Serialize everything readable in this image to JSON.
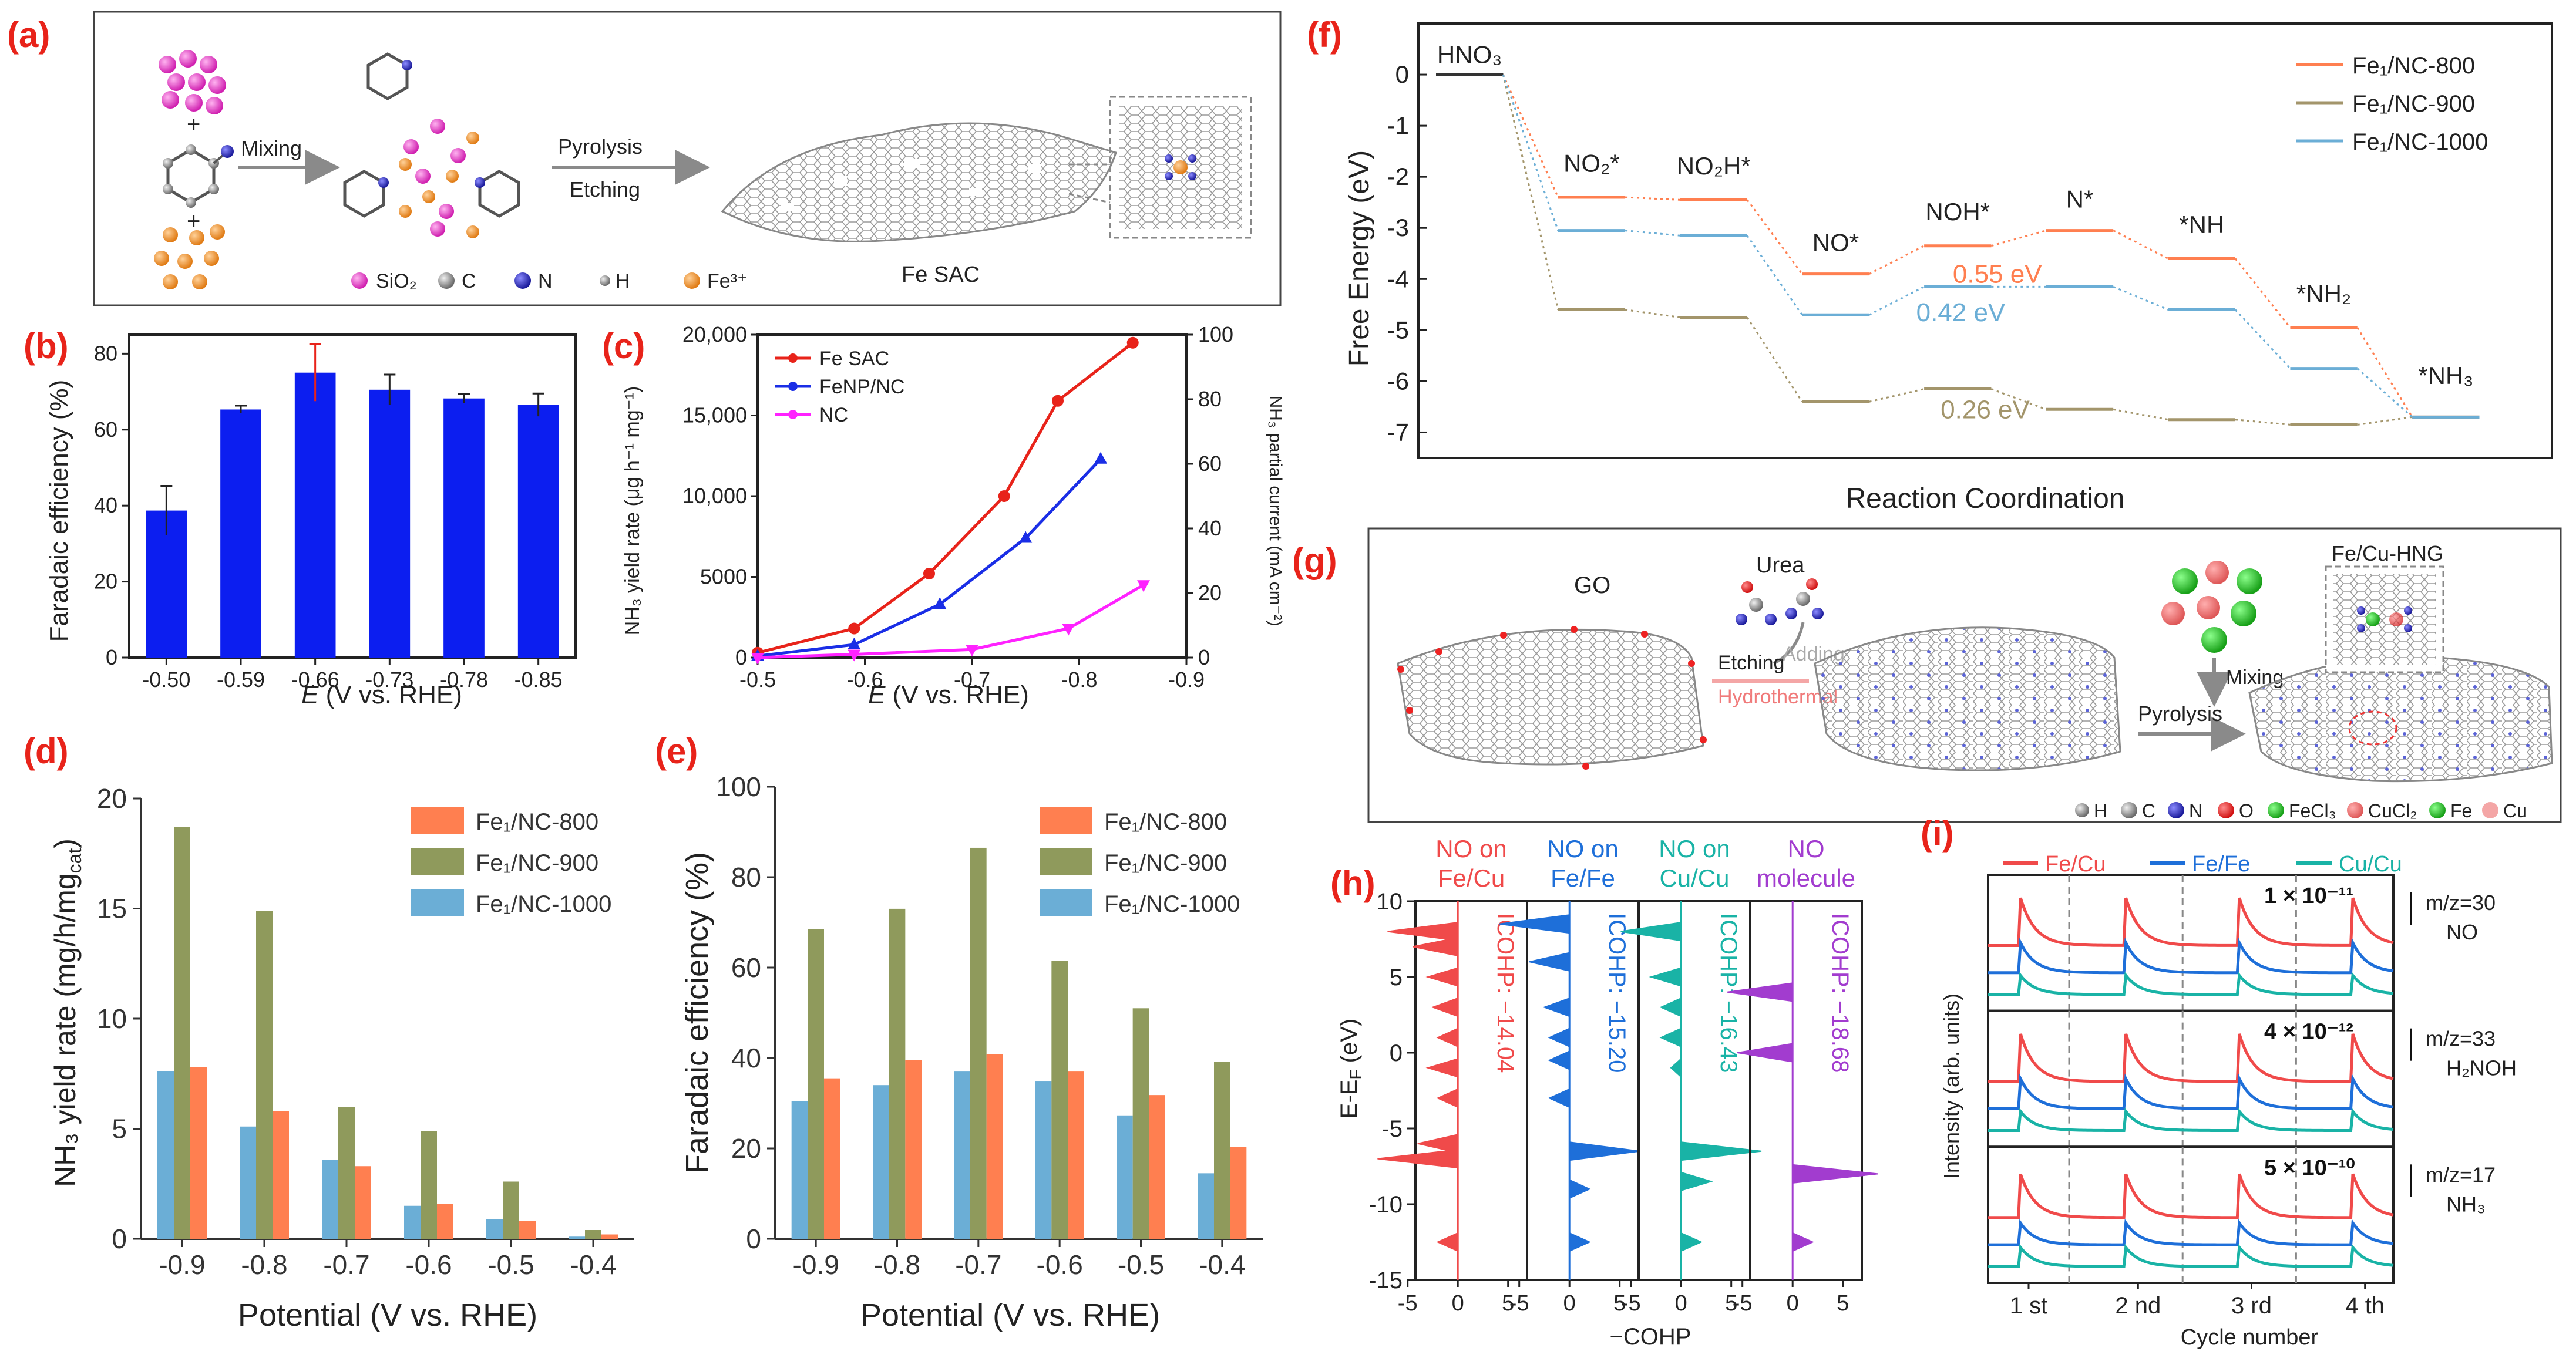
{
  "colors": {
    "label_red": "#e8231a",
    "fe_sac": "#e8231a",
    "fenp": "#1a2ee6",
    "nc": "#ff22ff",
    "bar_blue": "#0c1ef0",
    "nc800": "#ff7f50",
    "nc900": "#8f9a5c",
    "nc1000": "#6baed6",
    "fecu": "#f04a4a",
    "fefe": "#1e6fd9",
    "cucu": "#19b3a6",
    "molecule": "#a23ccf"
  },
  "panel_a": {
    "label": "(a)",
    "step1": "Mixing",
    "step2": "Pyrolysis",
    "step3": "Etching",
    "product": "Fe SAC",
    "legend": [
      "SiO₂",
      "C",
      "N",
      "H",
      "Fe³⁺"
    ],
    "plus": "+"
  },
  "panel_b": {
    "label": "(b)",
    "chart_data": {
      "type": "bar",
      "categories": [
        "-0.50",
        "-0.59",
        "-0.66",
        "-0.73",
        "-0.78",
        "-0.85"
      ],
      "values": [
        38.7,
        65.3,
        75.0,
        70.5,
        68.2,
        66.5
      ],
      "errors": [
        6.5,
        1.0,
        7.5,
        4.0,
        1.2,
        3.0
      ],
      "ylabel": "Faradaic efficiency (%)",
      "xlabel_italic": "E",
      "xlabel_rest": " (V vs. RHE)",
      "ylim": [
        0,
        85
      ],
      "yticks": [
        "0",
        "20",
        "40",
        "60",
        "80"
      ]
    }
  },
  "panel_c": {
    "label": "(c)",
    "chart_data": {
      "type": "line",
      "xlabel_italic": "E",
      "xlabel_rest": " (V vs. RHE)",
      "ylabel_left": "NH₃ yield rate (μg h⁻¹ mg⁻¹)",
      "ylabel_right": "NH₃ partial current (mA cm⁻²)",
      "xlim": [
        -0.5,
        -0.9
      ],
      "ylim_left": [
        0,
        20000
      ],
      "ylim_right": [
        0,
        100
      ],
      "xticks": [
        "-0.5",
        "-0.6",
        "-0.7",
        "-0.8",
        "-0.9"
      ],
      "yticks_left": [
        "0",
        "5000",
        "10,000",
        "15,000",
        "20,000"
      ],
      "yticks_right": [
        "0",
        "20",
        "40",
        "60",
        "80",
        "100"
      ],
      "series": [
        {
          "name": "Fe SAC",
          "x": [
            -0.5,
            -0.59,
            -0.66,
            -0.73,
            -0.78,
            -0.85
          ],
          "y": [
            300,
            1800,
            5200,
            10000,
            15900,
            19500
          ]
        },
        {
          "name": "FeNP/NC",
          "x": [
            -0.5,
            -0.59,
            -0.67,
            -0.75,
            -0.82
          ],
          "y": [
            100,
            800,
            3300,
            7400,
            12300
          ]
        },
        {
          "name": "NC",
          "x": [
            -0.5,
            -0.59,
            -0.7,
            -0.79,
            -0.86
          ],
          "y": [
            0,
            200,
            500,
            1800,
            4500
          ]
        }
      ]
    }
  },
  "panel_d": {
    "label": "(d)",
    "chart_data": {
      "type": "bar",
      "categories": [
        "-0.9",
        "-0.8",
        "-0.7",
        "-0.6",
        "-0.5",
        "-0.4"
      ],
      "series": [
        {
          "name": "Fe₁/NC-1000",
          "values": [
            7.6,
            5.1,
            3.6,
            1.5,
            0.9,
            0.1
          ]
        },
        {
          "name": "Fe₁/NC-900",
          "values": [
            18.7,
            14.9,
            6.0,
            4.9,
            2.6,
            0.4
          ]
        },
        {
          "name": "Fe₁/NC-800",
          "values": [
            7.8,
            5.8,
            3.3,
            1.6,
            0.8,
            0.2
          ]
        }
      ],
      "legend": [
        "Fe₁/NC-800",
        "Fe₁/NC-900",
        "Fe₁/NC-1000"
      ],
      "ylabel": "NH₃ yield rate (mg/h/mg",
      "ylabel_sub": "cat",
      "ylabel_close": ")",
      "xlabel": "Potential (V vs. RHE)",
      "ylim": [
        0,
        20
      ],
      "yticks": [
        "0",
        "5",
        "10",
        "15",
        "20"
      ]
    }
  },
  "panel_e": {
    "label": "(e)",
    "chart_data": {
      "type": "bar",
      "categories": [
        "-0.9",
        "-0.8",
        "-0.7",
        "-0.6",
        "-0.5",
        "-0.4"
      ],
      "series": [
        {
          "name": "Fe₁/NC-1000",
          "values": [
            30.5,
            34.0,
            37.0,
            34.8,
            27.3,
            14.5
          ]
        },
        {
          "name": "Fe₁/NC-900",
          "values": [
            68.5,
            73.0,
            86.5,
            61.5,
            51.0,
            39.2
          ]
        },
        {
          "name": "Fe₁/NC-800",
          "values": [
            35.5,
            39.5,
            40.8,
            37.0,
            31.8,
            20.3
          ]
        }
      ],
      "legend": [
        "Fe₁/NC-800",
        "Fe₁/NC-900",
        "Fe₁/NC-1000"
      ],
      "ylabel": "Faradaic efficiency (%)",
      "xlabel": "Potential (V vs. RHE)",
      "ylim": [
        0,
        100
      ],
      "yticks": [
        "0",
        "20",
        "40",
        "60",
        "80",
        "100"
      ]
    }
  },
  "panel_f": {
    "label": "(f)",
    "chart_data": {
      "type": "line",
      "ylabel": "Free Energy (eV)",
      "xlabel": "Reaction Coordination",
      "ylim": [
        -7.5,
        1.0
      ],
      "yticks": [
        "0",
        "-1",
        "-2",
        "-3",
        "-4",
        "-5",
        "-6",
        "-7"
      ],
      "species": [
        "HNO₃",
        "NO₂*",
        "NO₂H*",
        "NO*",
        "NOH*",
        "N*",
        "*NH",
        "*NH₂",
        "*NH₃"
      ],
      "series": [
        {
          "name": "Fe₁/NC-800",
          "values": [
            0,
            -2.4,
            -2.45,
            -3.9,
            -3.35,
            -3.05,
            -3.6,
            -4.95,
            -6.7
          ]
        },
        {
          "name": "Fe₁/NC-900",
          "values": [
            0,
            -4.6,
            -4.75,
            -6.4,
            -6.15,
            -6.55,
            -6.75,
            -6.85,
            -6.7
          ]
        },
        {
          "name": "Fe₁/NC-1000",
          "values": [
            0,
            -3.05,
            -3.15,
            -4.7,
            -4.15,
            -4.15,
            -4.6,
            -5.75,
            -6.7
          ]
        }
      ],
      "annotations": [
        "0.55 eV",
        "0.42 eV",
        "0.26 eV"
      ]
    }
  },
  "panel_g": {
    "label": "(g)",
    "go": "GO",
    "urea": "Urea",
    "etching": "Etching",
    "adding": "Adding",
    "hydrothermal": "Hydrothermal",
    "mixing": "Mixing",
    "pyrolysis": "Pyrolysis",
    "product": "Fe/Cu-HNG",
    "legend": [
      "H",
      "C",
      "N",
      "O",
      "FeCl₃",
      "CuCl₂",
      "Fe",
      "Cu"
    ]
  },
  "panel_h": {
    "label": "(h)",
    "columns": [
      {
        "title1": "NO on",
        "title2": "Fe/Cu",
        "icohp": "ICOHP: −14.04"
      },
      {
        "title1": "NO on",
        "title2": "Fe/Fe",
        "icohp": "ICOHP: −15.20"
      },
      {
        "title1": "NO on",
        "title2": "Cu/Cu",
        "icohp": "ICOHP: −16.43"
      },
      {
        "title1": "NO",
        "title2": "molecule",
        "icohp": "ICOHP: −18.68"
      }
    ],
    "ylabel": "E-E",
    "ylabel_sub": "F",
    "ylabel_unit": " (eV)",
    "xlabel": "−COHP",
    "yticks": [
      "10",
      "5",
      "0",
      "-5",
      "-10",
      "-15"
    ],
    "xticks": [
      "-5",
      "0",
      "5"
    ]
  },
  "panel_i": {
    "label": "(i)",
    "legend": [
      "Fe/Cu",
      "Fe/Fe",
      "Cu/Cu"
    ],
    "ylabel": "Intensity (arb. units)",
    "xlabel": "Cycle number",
    "cycles": [
      "1 st",
      "2 nd",
      "3 rd",
      "4 th"
    ],
    "rows": [
      {
        "scale": "1 × 10⁻¹¹",
        "mz": "m/z=30",
        "species": "NO"
      },
      {
        "scale": "4 × 10⁻¹²",
        "mz": "m/z=33",
        "species": "H₂NOH"
      },
      {
        "scale": "5 × 10⁻¹⁰",
        "mz": "m/z=17",
        "species": "NH₃"
      }
    ]
  }
}
